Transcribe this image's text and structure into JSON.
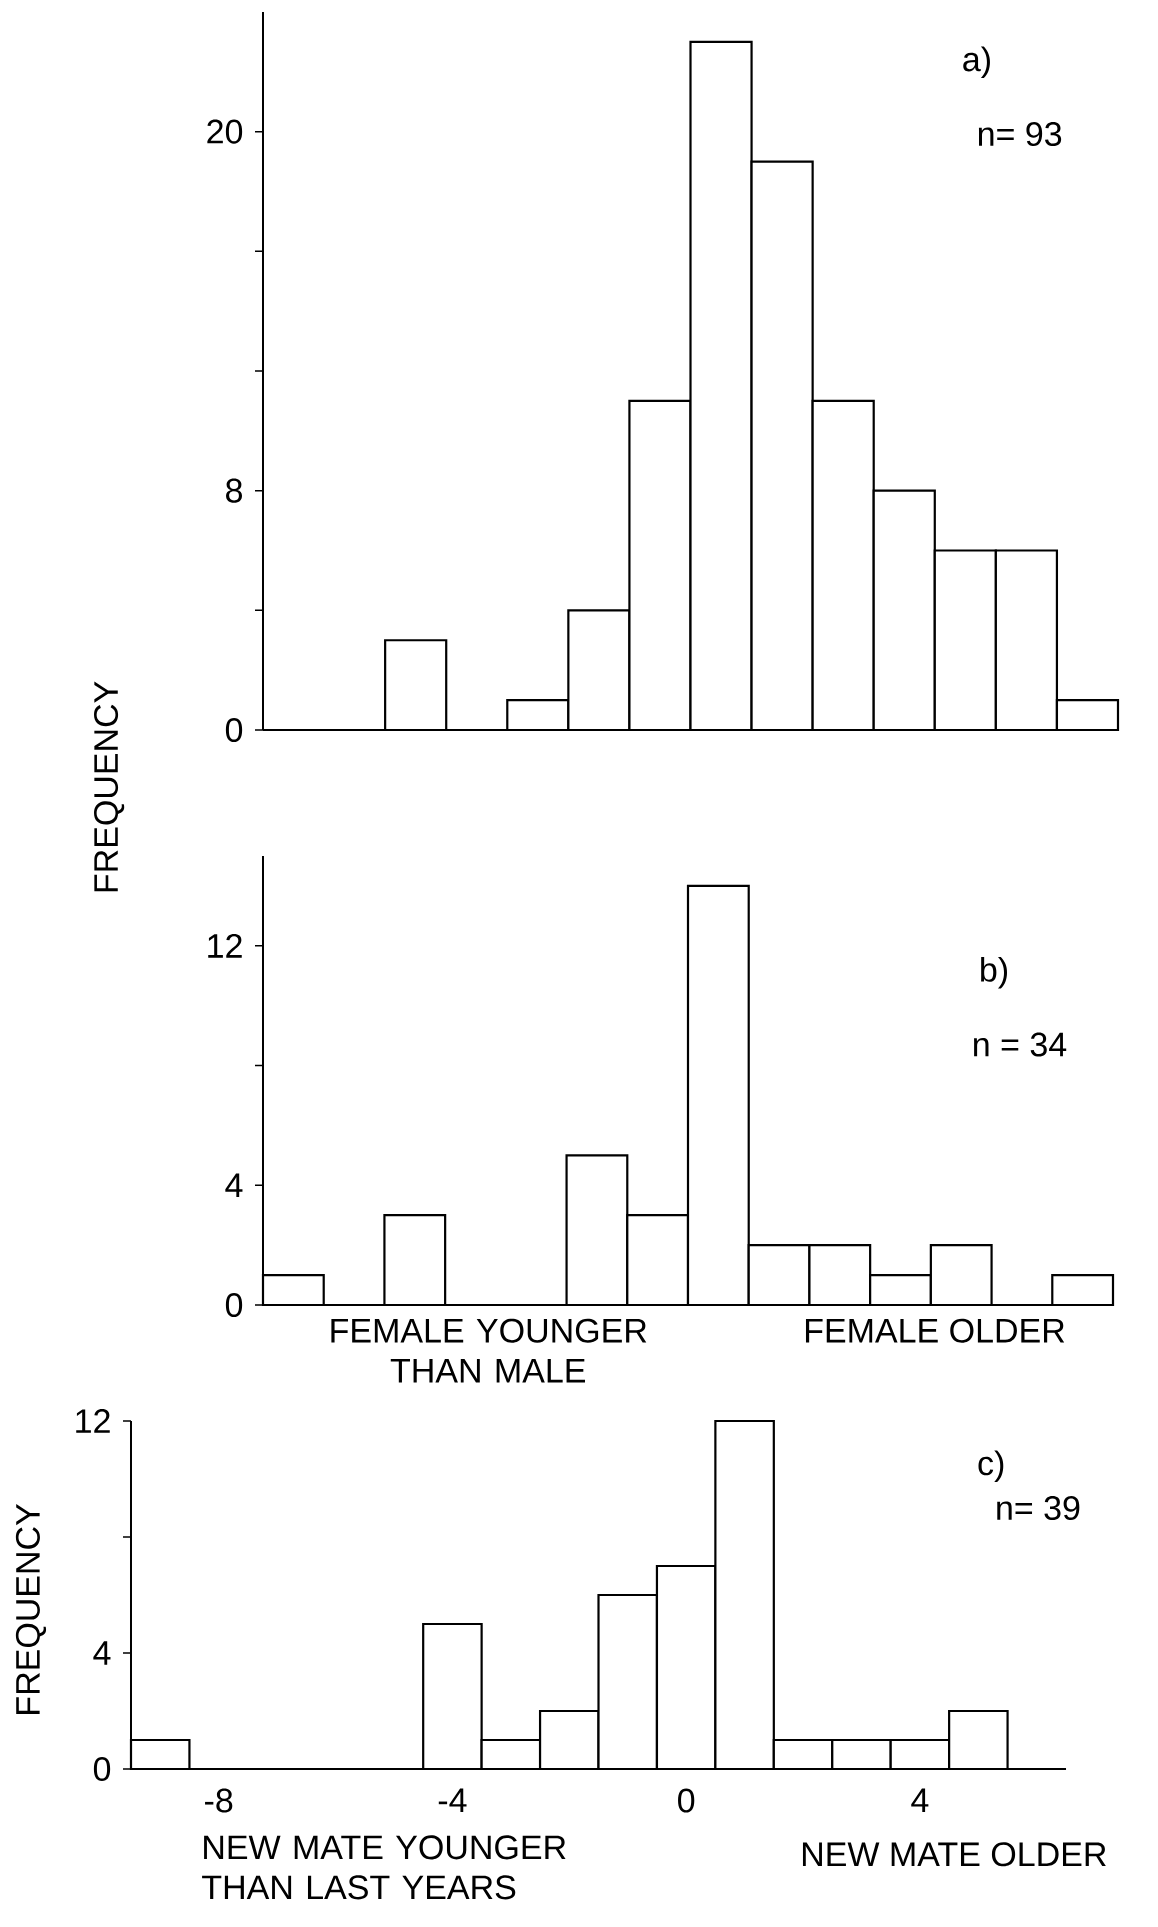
{
  "chart_data": [
    {
      "type": "bar",
      "categories": [
        null,
        null,
        null,
        null,
        null,
        null,
        null,
        null,
        null,
        null,
        null,
        null,
        null,
        null
      ],
      "values": [
        0,
        0,
        3,
        0,
        1,
        4,
        11,
        23,
        19,
        11,
        8,
        6,
        6,
        1
      ],
      "color": "#000000",
      "ylim": [
        0,
        24
      ],
      "yticks": [
        0,
        {
          "value": 4,
          "label": null
        },
        8,
        {
          "value": 12,
          "label": null
        },
        {
          "value": 16,
          "label": null
        },
        20
      ],
      "tick_labels": "y",
      "ylabel": "FREQUENCY",
      "annotations": [
        "a)",
        "n= 93"
      ]
    },
    {
      "type": "bar",
      "categories": [
        null,
        null,
        null,
        null,
        null,
        null,
        null,
        null,
        null,
        null,
        null,
        null,
        null,
        null
      ],
      "values": [
        1,
        0,
        3,
        0,
        0,
        5,
        3,
        14,
        2,
        2,
        1,
        2,
        0,
        1
      ],
      "color": "#000000",
      "ylim": [
        0,
        15
      ],
      "yticks": [
        0,
        4,
        {
          "value": 8,
          "label": null
        },
        12
      ],
      "tick_labels": "y",
      "annotations": [
        "b)",
        "n = 34",
        "FEMALE YOUNGER THAN MALE",
        "FEMALE OLDER"
      ]
    },
    {
      "type": "histogram",
      "bins": [
        -9.5,
        -8.5,
        -7.5,
        -6.5,
        -5.5,
        -4.5,
        -3.5,
        -2.5,
        -1.5,
        -0.5,
        0.5,
        1.5,
        2.5,
        3.5,
        4.5,
        5.5,
        6.5
      ],
      "values": [
        1,
        0,
        0,
        0,
        0,
        5,
        1,
        2,
        6,
        7,
        12,
        1,
        1,
        1,
        2,
        0
      ],
      "color": "#000000",
      "xlim": [
        -9.5,
        6.5
      ],
      "xticks": [
        -8,
        -4,
        0,
        4
      ],
      "ylim": [
        0,
        12
      ],
      "yticks": [
        0,
        4,
        {
          "value": 8,
          "label": null
        },
        12
      ],
      "ylabel": "FREQUENCY",
      "annotations": [
        "c)",
        "n= 39",
        "NEW MATE YOUNGER THAN LAST YEARS",
        "NEW MATE OLDER"
      ]
    }
  ]
}
